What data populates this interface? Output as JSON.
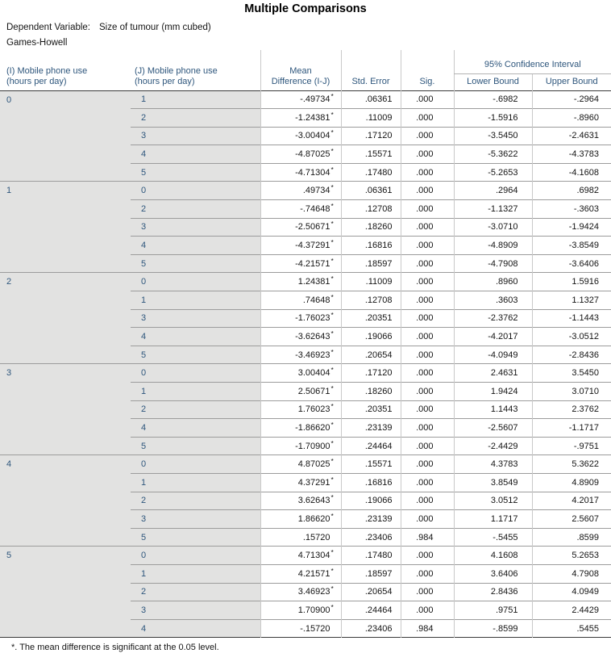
{
  "title": "Multiple Comparisons",
  "dependent_variable": {
    "label": "Dependent Variable:",
    "value": "Size of tumour (mm cubed)"
  },
  "method": "Games-Howell",
  "colors": {
    "header_text": "#2e567c",
    "label_cell_background": "#e2e2e1",
    "grid_line_light": "#c9c9c9",
    "grid_line_mid": "#9c9c9c",
    "table_frame_dark": "#3a3a3a"
  },
  "table": {
    "headers": {
      "col_i": "(I) Mobile phone use (hours per day)",
      "col_j": "(J) Mobile phone use (hours per day)",
      "mean_difference": "Mean Difference (I-J)",
      "std_error": "Std. Error",
      "sig": "Sig.",
      "ci_group": "95% Confidence Interval",
      "lower_bound": "Lower Bound",
      "upper_bound": "Upper Bound"
    },
    "groups": [
      {
        "i": "0",
        "rows": [
          {
            "j": "1",
            "mean_difference": "-.49734",
            "significant": true,
            "std_error": ".06361",
            "sig": ".000",
            "lower_bound": "-.6982",
            "upper_bound": "-.2964"
          },
          {
            "j": "2",
            "mean_difference": "-1.24381",
            "significant": true,
            "std_error": ".11009",
            "sig": ".000",
            "lower_bound": "-1.5916",
            "upper_bound": "-.8960"
          },
          {
            "j": "3",
            "mean_difference": "-3.00404",
            "significant": true,
            "std_error": ".17120",
            "sig": ".000",
            "lower_bound": "-3.5450",
            "upper_bound": "-2.4631"
          },
          {
            "j": "4",
            "mean_difference": "-4.87025",
            "significant": true,
            "std_error": ".15571",
            "sig": ".000",
            "lower_bound": "-5.3622",
            "upper_bound": "-4.3783"
          },
          {
            "j": "5",
            "mean_difference": "-4.71304",
            "significant": true,
            "std_error": ".17480",
            "sig": ".000",
            "lower_bound": "-5.2653",
            "upper_bound": "-4.1608"
          }
        ]
      },
      {
        "i": "1",
        "rows": [
          {
            "j": "0",
            "mean_difference": ".49734",
            "significant": true,
            "std_error": ".06361",
            "sig": ".000",
            "lower_bound": ".2964",
            "upper_bound": ".6982"
          },
          {
            "j": "2",
            "mean_difference": "-.74648",
            "significant": true,
            "std_error": ".12708",
            "sig": ".000",
            "lower_bound": "-1.1327",
            "upper_bound": "-.3603"
          },
          {
            "j": "3",
            "mean_difference": "-2.50671",
            "significant": true,
            "std_error": ".18260",
            "sig": ".000",
            "lower_bound": "-3.0710",
            "upper_bound": "-1.9424"
          },
          {
            "j": "4",
            "mean_difference": "-4.37291",
            "significant": true,
            "std_error": ".16816",
            "sig": ".000",
            "lower_bound": "-4.8909",
            "upper_bound": "-3.8549"
          },
          {
            "j": "5",
            "mean_difference": "-4.21571",
            "significant": true,
            "std_error": ".18597",
            "sig": ".000",
            "lower_bound": "-4.7908",
            "upper_bound": "-3.6406"
          }
        ]
      },
      {
        "i": "2",
        "rows": [
          {
            "j": "0",
            "mean_difference": "1.24381",
            "significant": true,
            "std_error": ".11009",
            "sig": ".000",
            "lower_bound": ".8960",
            "upper_bound": "1.5916"
          },
          {
            "j": "1",
            "mean_difference": ".74648",
            "significant": true,
            "std_error": ".12708",
            "sig": ".000",
            "lower_bound": ".3603",
            "upper_bound": "1.1327"
          },
          {
            "j": "3",
            "mean_difference": "-1.76023",
            "significant": true,
            "std_error": ".20351",
            "sig": ".000",
            "lower_bound": "-2.3762",
            "upper_bound": "-1.1443"
          },
          {
            "j": "4",
            "mean_difference": "-3.62643",
            "significant": true,
            "std_error": ".19066",
            "sig": ".000",
            "lower_bound": "-4.2017",
            "upper_bound": "-3.0512"
          },
          {
            "j": "5",
            "mean_difference": "-3.46923",
            "significant": true,
            "std_error": ".20654",
            "sig": ".000",
            "lower_bound": "-4.0949",
            "upper_bound": "-2.8436"
          }
        ]
      },
      {
        "i": "3",
        "rows": [
          {
            "j": "0",
            "mean_difference": "3.00404",
            "significant": true,
            "std_error": ".17120",
            "sig": ".000",
            "lower_bound": "2.4631",
            "upper_bound": "3.5450"
          },
          {
            "j": "1",
            "mean_difference": "2.50671",
            "significant": true,
            "std_error": ".18260",
            "sig": ".000",
            "lower_bound": "1.9424",
            "upper_bound": "3.0710"
          },
          {
            "j": "2",
            "mean_difference": "1.76023",
            "significant": true,
            "std_error": ".20351",
            "sig": ".000",
            "lower_bound": "1.1443",
            "upper_bound": "2.3762"
          },
          {
            "j": "4",
            "mean_difference": "-1.86620",
            "significant": true,
            "std_error": ".23139",
            "sig": ".000",
            "lower_bound": "-2.5607",
            "upper_bound": "-1.1717"
          },
          {
            "j": "5",
            "mean_difference": "-1.70900",
            "significant": true,
            "std_error": ".24464",
            "sig": ".000",
            "lower_bound": "-2.4429",
            "upper_bound": "-.9751"
          }
        ]
      },
      {
        "i": "4",
        "rows": [
          {
            "j": "0",
            "mean_difference": "4.87025",
            "significant": true,
            "std_error": ".15571",
            "sig": ".000",
            "lower_bound": "4.3783",
            "upper_bound": "5.3622"
          },
          {
            "j": "1",
            "mean_difference": "4.37291",
            "significant": true,
            "std_error": ".16816",
            "sig": ".000",
            "lower_bound": "3.8549",
            "upper_bound": "4.8909"
          },
          {
            "j": "2",
            "mean_difference": "3.62643",
            "significant": true,
            "std_error": ".19066",
            "sig": ".000",
            "lower_bound": "3.0512",
            "upper_bound": "4.2017"
          },
          {
            "j": "3",
            "mean_difference": "1.86620",
            "significant": true,
            "std_error": ".23139",
            "sig": ".000",
            "lower_bound": "1.1717",
            "upper_bound": "2.5607"
          },
          {
            "j": "5",
            "mean_difference": ".15720",
            "significant": false,
            "std_error": ".23406",
            "sig": ".984",
            "lower_bound": "-.5455",
            "upper_bound": ".8599"
          }
        ]
      },
      {
        "i": "5",
        "rows": [
          {
            "j": "0",
            "mean_difference": "4.71304",
            "significant": true,
            "std_error": ".17480",
            "sig": ".000",
            "lower_bound": "4.1608",
            "upper_bound": "5.2653"
          },
          {
            "j": "1",
            "mean_difference": "4.21571",
            "significant": true,
            "std_error": ".18597",
            "sig": ".000",
            "lower_bound": "3.6406",
            "upper_bound": "4.7908"
          },
          {
            "j": "2",
            "mean_difference": "3.46923",
            "significant": true,
            "std_error": ".20654",
            "sig": ".000",
            "lower_bound": "2.8436",
            "upper_bound": "4.0949"
          },
          {
            "j": "3",
            "mean_difference": "1.70900",
            "significant": true,
            "std_error": ".24464",
            "sig": ".000",
            "lower_bound": ".9751",
            "upper_bound": "2.4429"
          },
          {
            "j": "4",
            "mean_difference": "-.15720",
            "significant": false,
            "std_error": ".23406",
            "sig": ".984",
            "lower_bound": "-.8599",
            "upper_bound": ".5455"
          }
        ]
      }
    ]
  },
  "footnote": "*. The mean difference is significant at the 0.05 level."
}
